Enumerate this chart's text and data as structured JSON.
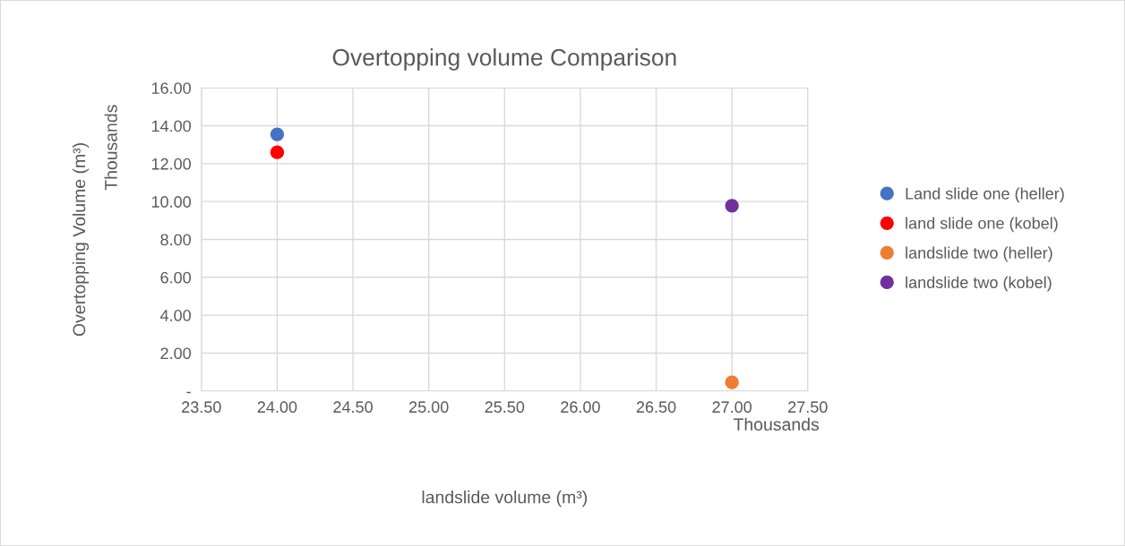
{
  "chart_data": {
    "type": "scatter",
    "title": "Overtopping volume Comparison",
    "xlabel": "landslide volume (m³)",
    "ylabel": "Overtopping Volume (m³)",
    "annotations": [
      "Thousands",
      "Thousands"
    ],
    "series": [
      {
        "name": "Land slide one (heller)",
        "color": "#4472c4",
        "values": [
          13.55,
          null
        ]
      },
      {
        "name": "land slide one (kobel)",
        "color": "#ff0000",
        "values": [
          12.6,
          null
        ]
      },
      {
        "name": "landslide two (heller)",
        "color": "#ed7d31",
        "values": [
          null,
          0.46
        ]
      },
      {
        "name": "landslide two (kobel)",
        "color": "#7030a0",
        "values": [
          null,
          9.78
        ]
      }
    ],
    "x": [
      24.0,
      27.0
    ],
    "xlim": [
      23.5,
      27.5
    ],
    "xticks": [
      {
        "value": 23.5,
        "label": "23.50"
      },
      {
        "value": 24,
        "label": "24.00"
      },
      {
        "value": 24.5,
        "label": "24.50"
      },
      {
        "value": 25,
        "label": "25.00"
      },
      {
        "value": 25.5,
        "label": "25.50"
      },
      {
        "value": 26,
        "label": "26.00"
      },
      {
        "value": 26.5,
        "label": "26.50"
      },
      {
        "value": 27,
        "label": "27.00"
      },
      {
        "value": 27.5,
        "label": "27.50"
      }
    ],
    "ylim": [
      0,
      16
    ],
    "yticks": [
      {
        "value": 0,
        "label": "-"
      },
      {
        "value": 2,
        "label": "2.00"
      },
      {
        "value": 4,
        "label": "4.00"
      },
      {
        "value": 6,
        "label": "6.00"
      },
      {
        "value": 8,
        "label": "8.00"
      },
      {
        "value": 10,
        "label": "10.00"
      },
      {
        "value": 12,
        "label": "12.00"
      },
      {
        "value": 14,
        "label": "14.00"
      },
      {
        "value": 16,
        "label": "16.00"
      }
    ],
    "grid": true,
    "legend": "right",
    "marker": "circle"
  }
}
